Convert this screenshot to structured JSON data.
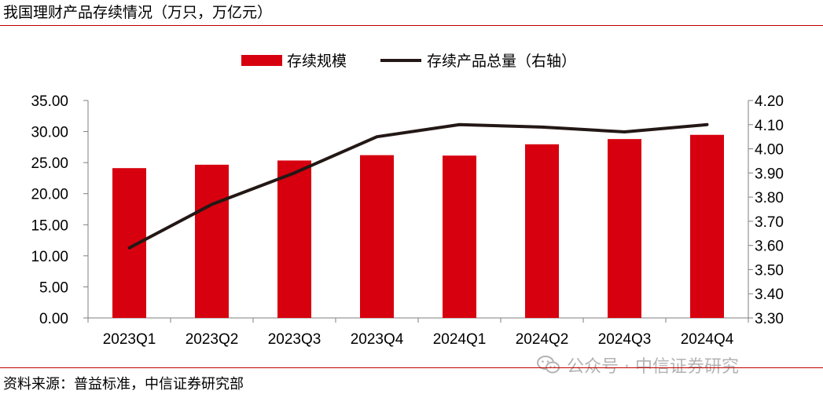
{
  "header": {
    "title": "我国理财产品存续情况（万只，万亿元）"
  },
  "footer": {
    "source": "资料来源：普益标准，中信证券研究部"
  },
  "watermark": {
    "text": "公众号 · 中信证券研究",
    "icon": "wechat-icon"
  },
  "colors": {
    "bar": "#d7000f",
    "line": "#231815",
    "rule": "#c00000"
  },
  "chart_data": {
    "type": "bar",
    "categories": [
      "2023Q1",
      "2023Q2",
      "2023Q3",
      "2023Q4",
      "2024Q1",
      "2024Q2",
      "2024Q3",
      "2024Q4"
    ],
    "series": [
      {
        "name": "存续规模",
        "type": "bar",
        "axis": "left",
        "values": [
          24.11,
          24.66,
          25.34,
          26.2,
          26.13,
          27.95,
          28.79,
          29.47
        ]
      },
      {
        "name": "存续产品总量（右轴）",
        "type": "line",
        "axis": "right",
        "values": [
          3.59,
          3.77,
          3.9,
          4.05,
          4.1,
          4.09,
          4.07,
          4.1
        ]
      }
    ],
    "y_left": {
      "min": 0,
      "max": 35,
      "step": 5,
      "decimals": 2
    },
    "y_right": {
      "min": 3.3,
      "max": 4.2,
      "step": 0.1,
      "decimals": 2
    },
    "legend_position": "top-center",
    "grid": false
  }
}
